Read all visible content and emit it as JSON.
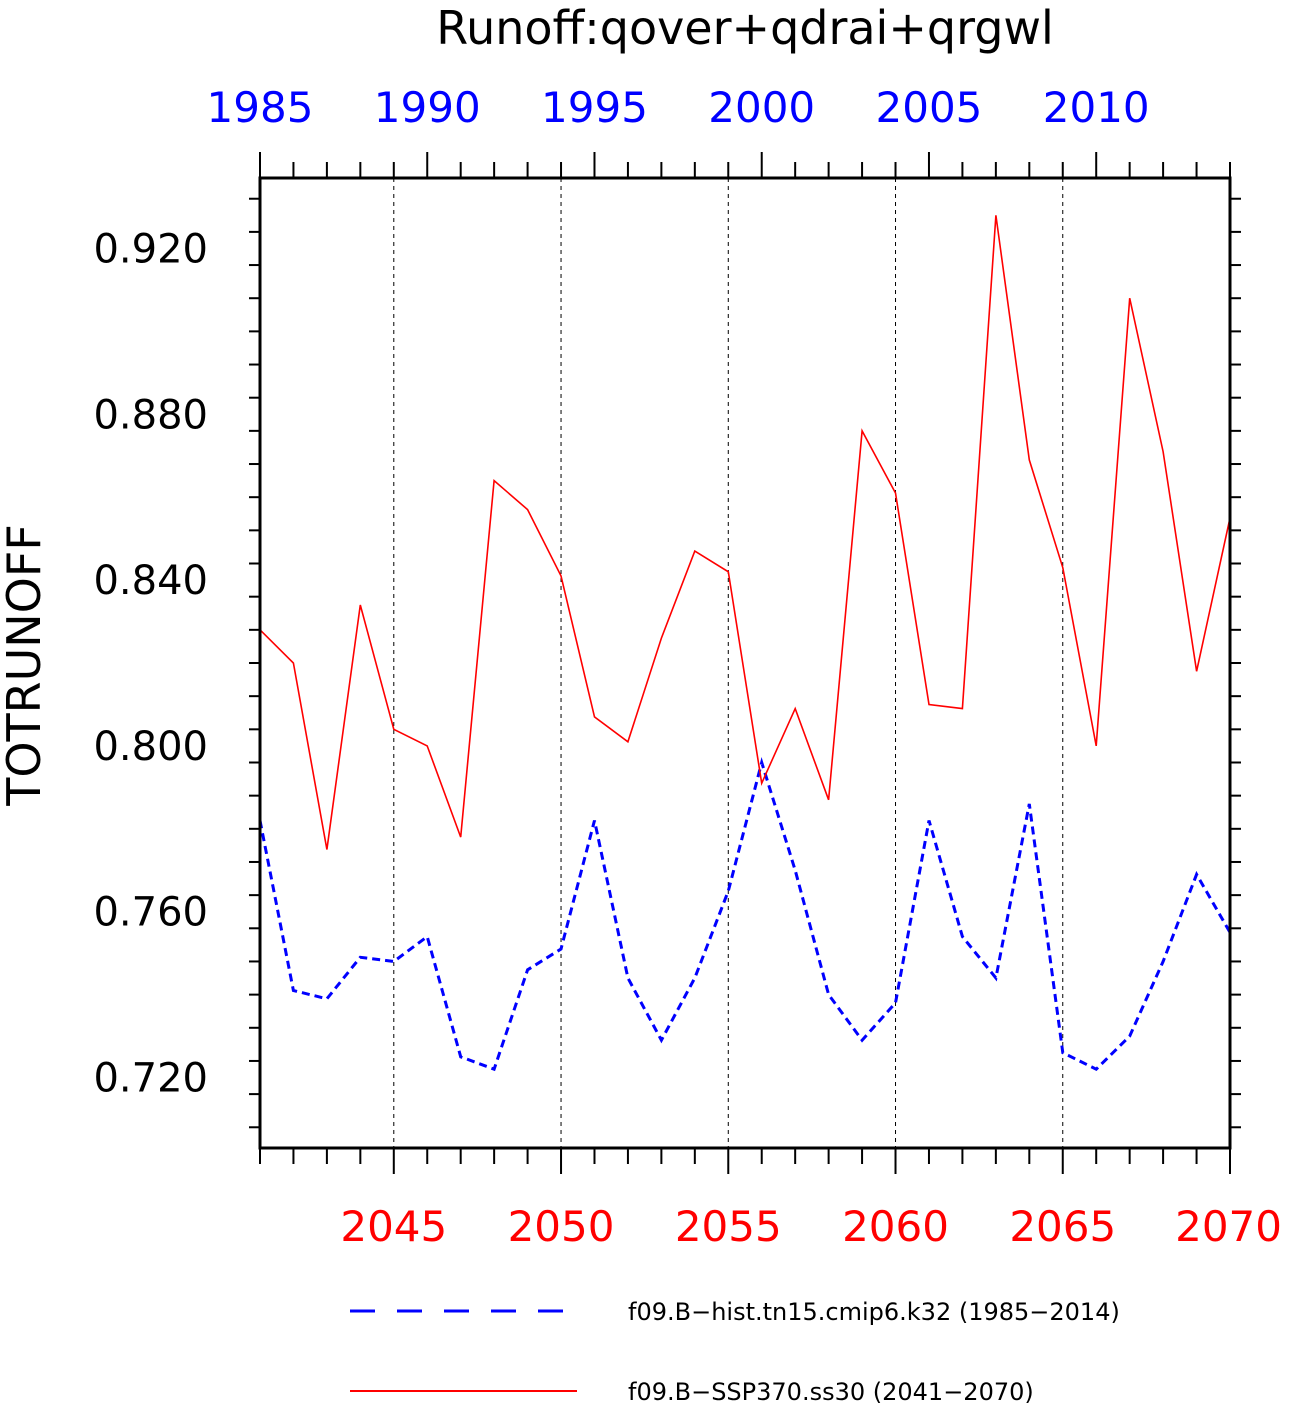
{
  "chart_data": {
    "type": "line",
    "title": "Runoff:qover+qdrai+qrgwl",
    "ylabel": "TOTRUNOFF",
    "ylim": [
      0.703,
      0.937
    ],
    "yticks": [
      0.72,
      0.76,
      0.8,
      0.84,
      0.88,
      0.92
    ],
    "ytick_labels": [
      "0.720",
      "0.760",
      "0.800",
      "0.840",
      "0.880",
      "0.920"
    ],
    "top_axis": {
      "color": "#0000ff",
      "xlim": [
        1985,
        2014
      ],
      "ticks": [
        1985,
        1990,
        1995,
        2000,
        2005,
        2010
      ],
      "tick_labels": [
        "1985",
        "1990",
        "1995",
        "2000",
        "2005",
        "2010"
      ]
    },
    "bottom_axis": {
      "color": "#ff0000",
      "xlim": [
        2041,
        2070
      ],
      "ticks": [
        2045,
        2050,
        2055,
        2060,
        2065,
        2070
      ],
      "tick_labels": [
        "2045",
        "2050",
        "2055",
        "2060",
        "2065",
        "2070"
      ]
    },
    "grid": "vertical dashed at bottom-axis major ticks",
    "legend_position": "bottom",
    "series": [
      {
        "name": "f09.B-hist.tn15.cmip6.k32 (1985−2014)",
        "axis": "top",
        "color": "#0000ff",
        "style": "dashed",
        "x": [
          1985,
          1986,
          1987,
          1988,
          1989,
          1990,
          1991,
          1992,
          1993,
          1994,
          1995,
          1996,
          1997,
          1998,
          1999,
          2000,
          2001,
          2002,
          2003,
          2004,
          2005,
          2006,
          2007,
          2008,
          2009,
          2010,
          2011,
          2012,
          2013,
          2014
        ],
        "values": [
          0.782,
          0.741,
          0.739,
          0.749,
          0.748,
          0.754,
          0.725,
          0.722,
          0.746,
          0.751,
          0.782,
          0.744,
          0.729,
          0.744,
          0.765,
          0.796,
          0.77,
          0.74,
          0.729,
          0.738,
          0.782,
          0.754,
          0.744,
          0.786,
          0.726,
          0.722,
          0.73,
          0.748,
          0.769,
          0.755
        ]
      },
      {
        "name": "f09.B−SSP370.ss30 (2041−2070)",
        "axis": "bottom",
        "color": "#ff0000",
        "style": "solid",
        "x": [
          2041,
          2042,
          2043,
          2044,
          2045,
          2046,
          2047,
          2048,
          2049,
          2050,
          2051,
          2052,
          2053,
          2054,
          2055,
          2056,
          2057,
          2058,
          2059,
          2060,
          2061,
          2062,
          2063,
          2064,
          2065,
          2066,
          2067,
          2068,
          2069,
          2070
        ],
        "values": [
          0.828,
          0.82,
          0.775,
          0.834,
          0.804,
          0.8,
          0.778,
          0.864,
          0.857,
          0.841,
          0.807,
          0.801,
          0.826,
          0.847,
          0.842,
          0.791,
          0.809,
          0.787,
          0.876,
          0.861,
          0.81,
          0.809,
          0.928,
          0.869,
          0.843,
          0.8,
          0.908,
          0.871,
          0.818,
          0.855
        ]
      }
    ]
  },
  "legend": [
    {
      "label": "f09.B−hist.tn15.cmip6.k32 (1985−2014)",
      "color": "#0000ff",
      "style": "dashed"
    },
    {
      "label": "f09.B−SSP370.ss30 (2041−2070)",
      "color": "#ff0000",
      "style": "solid"
    }
  ]
}
